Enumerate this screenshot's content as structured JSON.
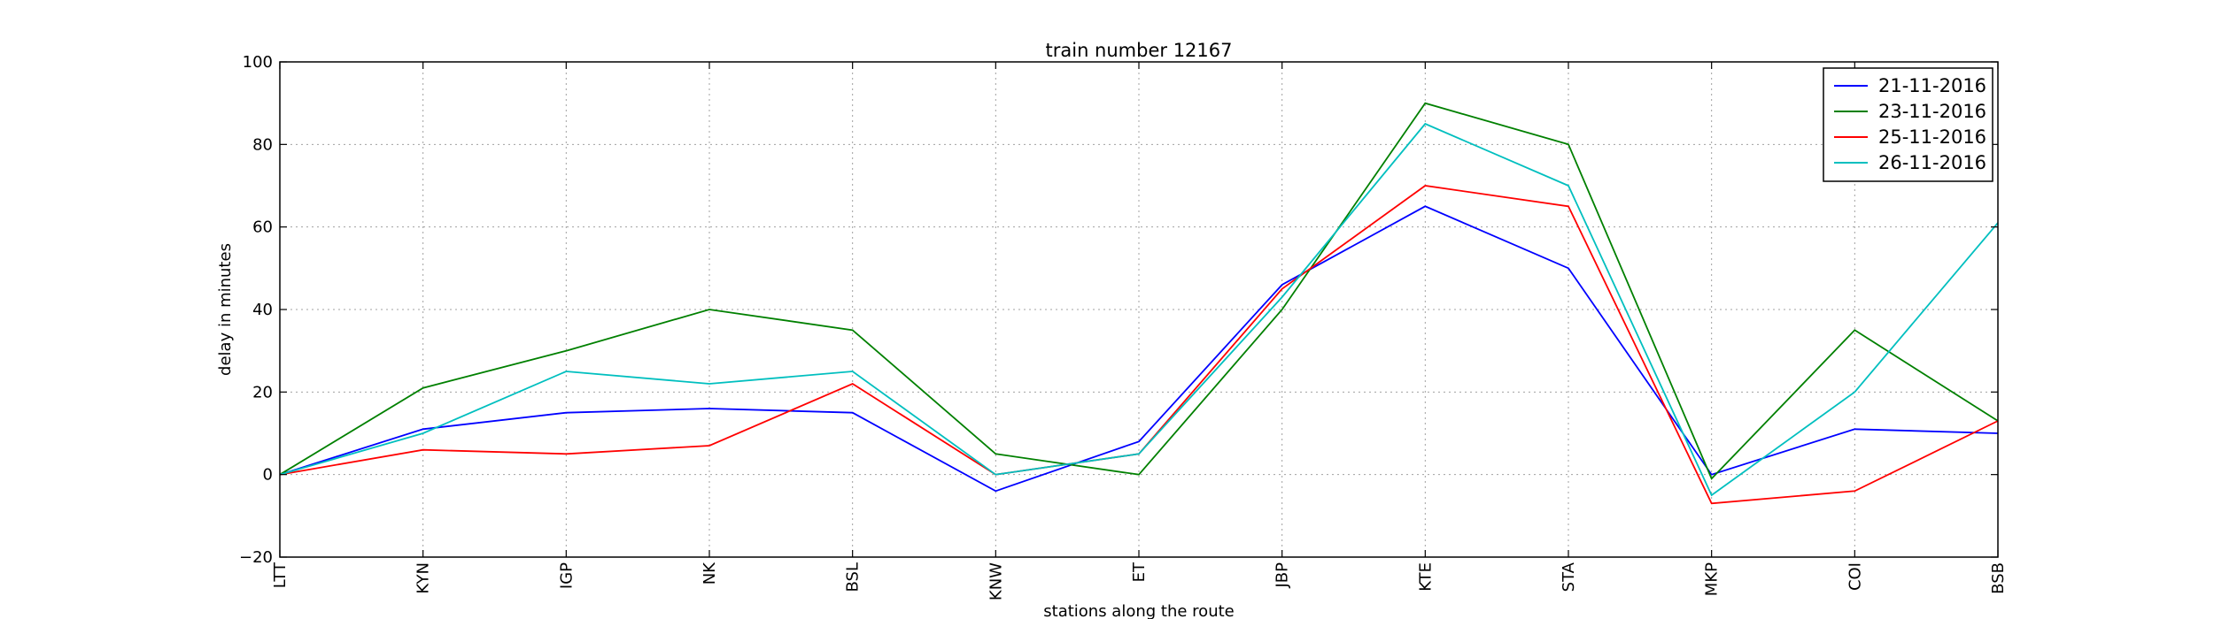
{
  "chart_data": {
    "type": "line",
    "title": "train number 12167",
    "xlabel": "stations along the route",
    "ylabel": "delay in minutes",
    "categories": [
      "LTT",
      "KYN",
      "IGP",
      "NK",
      "BSL",
      "KNW",
      "ET",
      "JBP",
      "KTE",
      "STA",
      "MKP",
      "COI",
      "BSB"
    ],
    "ylim": [
      -20,
      100
    ],
    "yticks": [
      -20,
      0,
      20,
      40,
      60,
      80,
      100
    ],
    "grid": true,
    "legend_position": "top-right",
    "series": [
      {
        "name": "21-11-2016",
        "color": "#0000ff",
        "values": [
          0,
          11,
          15,
          16,
          15,
          -4,
          8,
          46,
          65,
          50,
          0,
          11,
          10
        ]
      },
      {
        "name": "23-11-2016",
        "color": "#008000",
        "values": [
          0,
          21,
          30,
          40,
          35,
          5,
          0,
          40,
          90,
          80,
          -1,
          35,
          13
        ]
      },
      {
        "name": "25-11-2016",
        "color": "#ff0000",
        "values": [
          0,
          6,
          5,
          7,
          22,
          0,
          5,
          45,
          70,
          65,
          -7,
          -4,
          13
        ]
      },
      {
        "name": "26-11-2016",
        "color": "#00bfbf",
        "values": [
          0,
          10,
          25,
          22,
          25,
          0,
          5,
          43,
          85,
          70,
          -5,
          20,
          61
        ]
      }
    ]
  }
}
